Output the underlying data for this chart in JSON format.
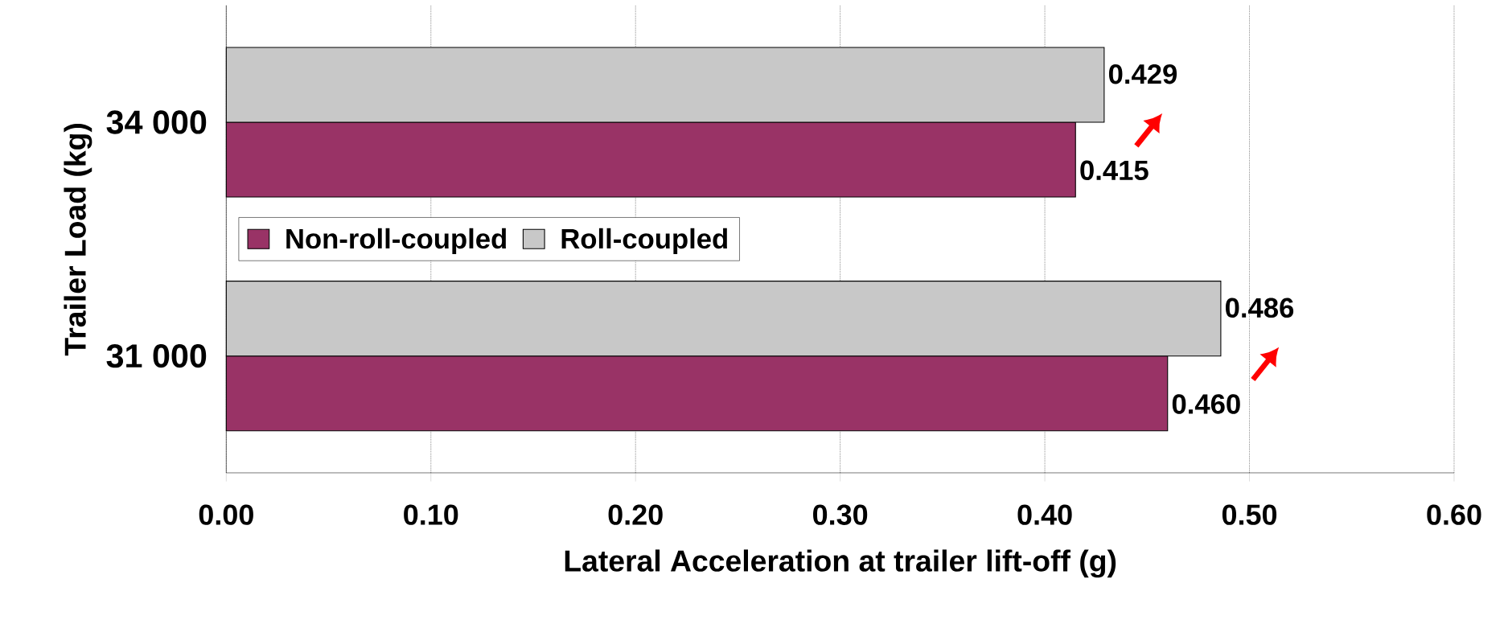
{
  "chart_data": {
    "type": "bar",
    "orientation": "horizontal",
    "xlabel": "Lateral Acceleration at trailer lift-off (g)",
    "ylabel": "Trailer Load (kg)",
    "categories": [
      "34 000",
      "31 000"
    ],
    "series": [
      {
        "name": "Non-roll-coupled",
        "color": "#993366",
        "values": [
          0.415,
          0.46
        ],
        "value_labels": [
          "0.415",
          "0.460"
        ]
      },
      {
        "name": "Roll-coupled",
        "color": "#c8c8c8",
        "values": [
          0.429,
          0.486
        ],
        "value_labels": [
          "0.429",
          "0.486"
        ]
      }
    ],
    "xlim": [
      0,
      0.6
    ],
    "xticks": [
      {
        "value": 0,
        "label": "0.00"
      },
      {
        "value": 0.1,
        "label": "0.10"
      },
      {
        "value": 0.2,
        "label": "0.20"
      },
      {
        "value": 0.3,
        "label": "0.30"
      },
      {
        "value": 0.4,
        "label": "0.40"
      },
      {
        "value": 0.5,
        "label": "0.50"
      },
      {
        "value": 0.6,
        "label": "0.60"
      }
    ],
    "grid": "x",
    "legend": "left"
  }
}
